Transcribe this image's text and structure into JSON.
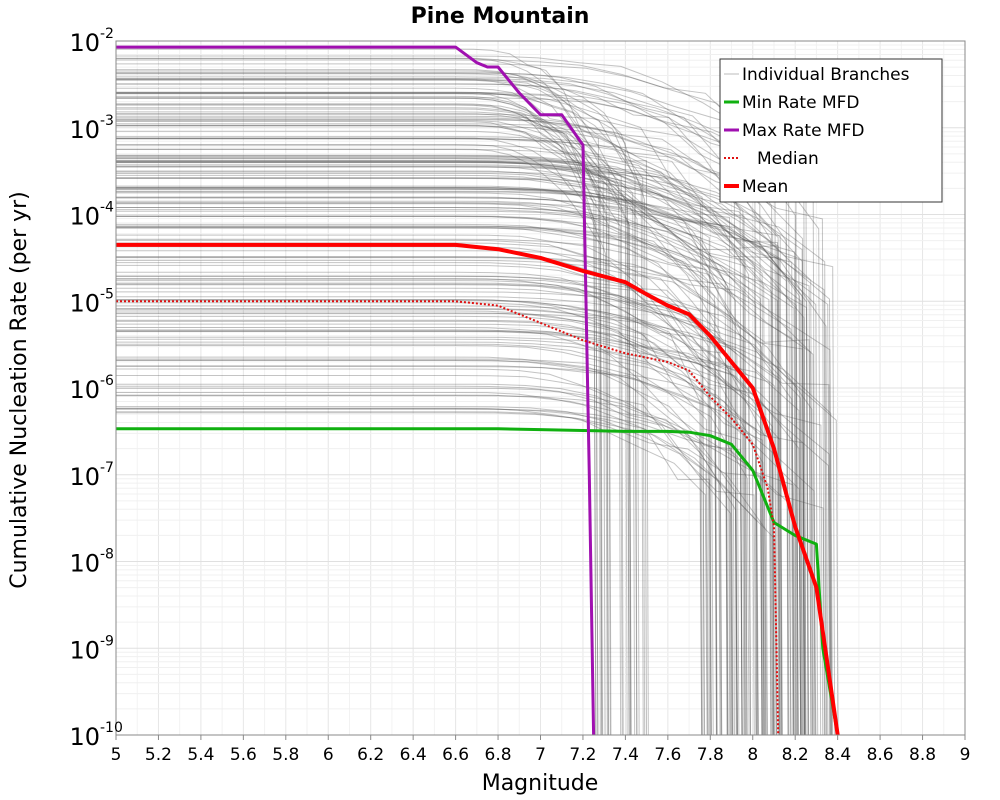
{
  "chart_data": {
    "type": "line",
    "title": "Pine Mountain",
    "xlabel": "Magnitude",
    "ylabel": "Cumulative Nucleation Rate (per yr)",
    "xlim": [
      5,
      9
    ],
    "ylim_log10": [
      -10,
      -2
    ],
    "y_scale": "log",
    "x_ticks": [
      "5",
      "5.2",
      "5.4",
      "5.6",
      "5.8",
      "6",
      "6.2",
      "6.4",
      "6.6",
      "6.8",
      "7",
      "7.2",
      "7.4",
      "7.6",
      "7.8",
      "8",
      "8.2",
      "8.4",
      "8.6",
      "8.8",
      "9"
    ],
    "y_ticks": [
      {
        "base": "10",
        "exp": "-2",
        "log": -2
      },
      {
        "base": "10",
        "exp": "-3",
        "log": -3
      },
      {
        "base": "10",
        "exp": "-4",
        "log": -4
      },
      {
        "base": "10",
        "exp": "-5",
        "log": -5
      },
      {
        "base": "10",
        "exp": "-6",
        "log": -6
      },
      {
        "base": "10",
        "exp": "-7",
        "log": -7
      },
      {
        "base": "10",
        "exp": "-8",
        "log": -8
      },
      {
        "base": "10",
        "exp": "-9",
        "log": -9
      },
      {
        "base": "10",
        "exp": "-10",
        "log": -10
      }
    ],
    "grid": true,
    "legend_position": "top-right",
    "legend": [
      {
        "label": "Individual Branches",
        "color": "#bbbbbb",
        "style": "solid",
        "width": 1
      },
      {
        "label": "Min Rate MFD",
        "color": "#10b010",
        "style": "solid",
        "width": 3
      },
      {
        "label": "Max Rate MFD",
        "color": "#a010b0",
        "style": "solid",
        "width": 3
      },
      {
        "label": "Median",
        "color": "#e01010",
        "style": "dotted",
        "width": 2
      },
      {
        "label": "Mean",
        "color": "#ff0000",
        "style": "solid",
        "width": 4
      }
    ],
    "series": [
      {
        "name": "Min Rate MFD",
        "color": "#10b010",
        "width": 3,
        "style": "solid",
        "x": [
          5.0,
          6.6,
          6.8,
          7.0,
          7.2,
          7.4,
          7.6,
          7.7,
          7.8,
          7.9,
          8.0,
          8.1,
          8.2,
          8.3,
          8.33,
          8.4
        ],
        "log_y": [
          -6.47,
          -6.47,
          -6.47,
          -6.48,
          -6.49,
          -6.5,
          -6.5,
          -6.51,
          -6.55,
          -6.65,
          -6.95,
          -7.55,
          -7.7,
          -7.8,
          -9.0,
          -10.0
        ]
      },
      {
        "name": "Max Rate MFD",
        "color": "#a010b0",
        "width": 3,
        "style": "solid",
        "x": [
          5.0,
          6.6,
          6.7,
          6.75,
          6.8,
          6.9,
          7.0,
          7.1,
          7.2,
          7.23,
          7.25
        ],
        "log_y": [
          -2.07,
          -2.07,
          -2.25,
          -2.3,
          -2.3,
          -2.6,
          -2.85,
          -2.85,
          -3.2,
          -7.0,
          -10.0
        ]
      },
      {
        "name": "Median",
        "color": "#e01010",
        "width": 2,
        "style": "dotted",
        "x": [
          5.0,
          6.6,
          6.8,
          7.0,
          7.2,
          7.4,
          7.6,
          7.7,
          7.8,
          7.9,
          8.0,
          8.07,
          8.1,
          8.12
        ],
        "log_y": [
          -5.0,
          -5.0,
          -5.05,
          -5.25,
          -5.45,
          -5.6,
          -5.7,
          -5.8,
          -6.1,
          -6.35,
          -6.65,
          -7.15,
          -7.6,
          -10.0
        ]
      },
      {
        "name": "Mean",
        "color": "#ff0000",
        "width": 4,
        "style": "solid",
        "x": [
          5.0,
          6.6,
          6.8,
          7.0,
          7.2,
          7.4,
          7.5,
          7.6,
          7.7,
          7.8,
          7.9,
          8.0,
          8.1,
          8.2,
          8.3,
          8.4
        ],
        "log_y": [
          -4.35,
          -4.35,
          -4.4,
          -4.5,
          -4.65,
          -4.78,
          -4.92,
          -5.05,
          -5.15,
          -5.4,
          -5.7,
          -6.0,
          -6.7,
          -7.6,
          -8.3,
          -10.0
        ]
      }
    ],
    "individual_branches": {
      "color": "#555555",
      "description_count": 180,
      "log_y_range_at_m5": [
        -6.4,
        -2.05
      ]
    }
  }
}
